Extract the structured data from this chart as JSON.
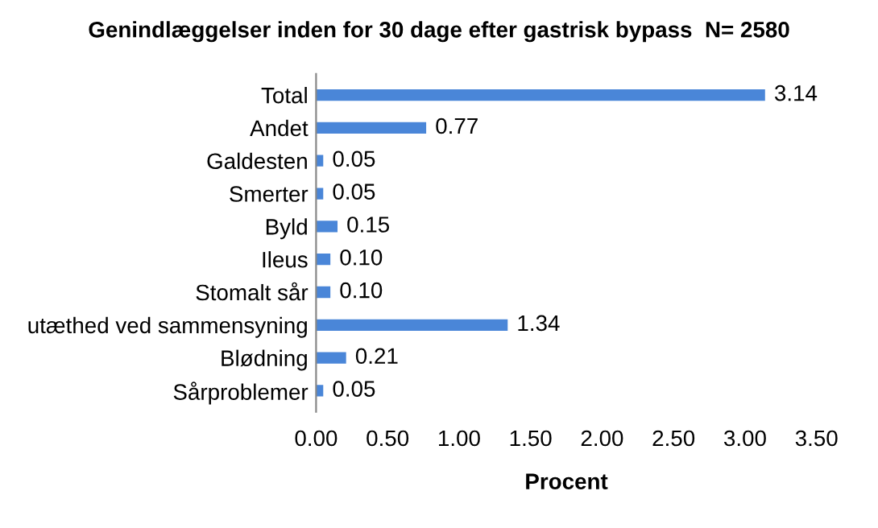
{
  "chart_data": {
    "type": "bar",
    "orientation": "horizontal",
    "title": "Genindlæggelser inden for 30 dage efter gastrisk bypass  N= 2580",
    "xlabel": "Procent",
    "categories": [
      "Total",
      "Andet",
      "Galdesten",
      "Smerter",
      "Byld",
      "Ileus",
      "Stomalt sår",
      "utæthed ved sammensyning",
      "Blødning",
      "Sårproblemer"
    ],
    "values": [
      3.14,
      0.77,
      0.05,
      0.05,
      0.15,
      0.1,
      0.1,
      1.34,
      0.21,
      0.05
    ],
    "value_labels": [
      "3.14",
      "0.77",
      "0.05",
      "0.05",
      "0.15",
      "0.10",
      "0.10",
      "1.34",
      "0.21",
      "0.05"
    ],
    "color": "#4a86d8",
    "xlim": [
      0,
      3.5
    ],
    "xticks": [
      {
        "value": 0,
        "label": "0.00"
      },
      {
        "value": 0.5,
        "label": "0.50"
      },
      {
        "value": 1,
        "label": "1.00"
      },
      {
        "value": 1.5,
        "label": "1.50"
      },
      {
        "value": 2,
        "label": "2.00"
      },
      {
        "value": 2.5,
        "label": "2.50"
      },
      {
        "value": 3,
        "label": "3.00"
      },
      {
        "value": 3.5,
        "label": "3.50"
      }
    ],
    "grid": false
  }
}
